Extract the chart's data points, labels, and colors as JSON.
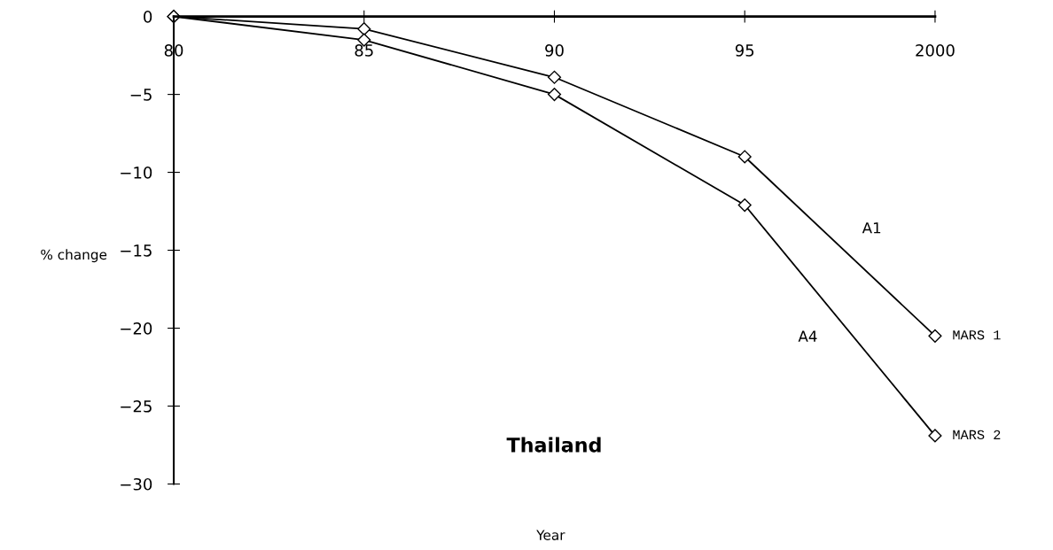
{
  "chart_data": {
    "type": "line",
    "title": "Thailand",
    "xlabel": "Year",
    "ylabel": "% change",
    "x": [
      1980,
      1985,
      1990,
      1995,
      2000
    ],
    "series": [
      {
        "name": "MARS 1",
        "color": "#000000",
        "values": [
          0,
          -0.8,
          -3.9,
          -9.0,
          -20.5
        ]
      },
      {
        "name": "MARS 2",
        "color": "#000000",
        "values": [
          0,
          -1.5,
          -5.0,
          -12.1,
          -26.9
        ]
      }
    ],
    "annotations": [
      "A1",
      "A4"
    ],
    "xlim": [
      1980,
      2000
    ],
    "ylim": [
      -30,
      0
    ],
    "xticks": [
      {
        "value": 1980,
        "label": "80"
      },
      {
        "value": 1985,
        "label": "85"
      },
      {
        "value": 1990,
        "label": "90"
      },
      {
        "value": 1995,
        "label": "95"
      },
      {
        "value": 2000,
        "label": "2000"
      }
    ],
    "yticks": [
      0,
      -5,
      -10,
      -15,
      -20,
      -25,
      -30
    ],
    "grid": false,
    "legend": false,
    "marker": "diamond",
    "line_style": "solid"
  }
}
